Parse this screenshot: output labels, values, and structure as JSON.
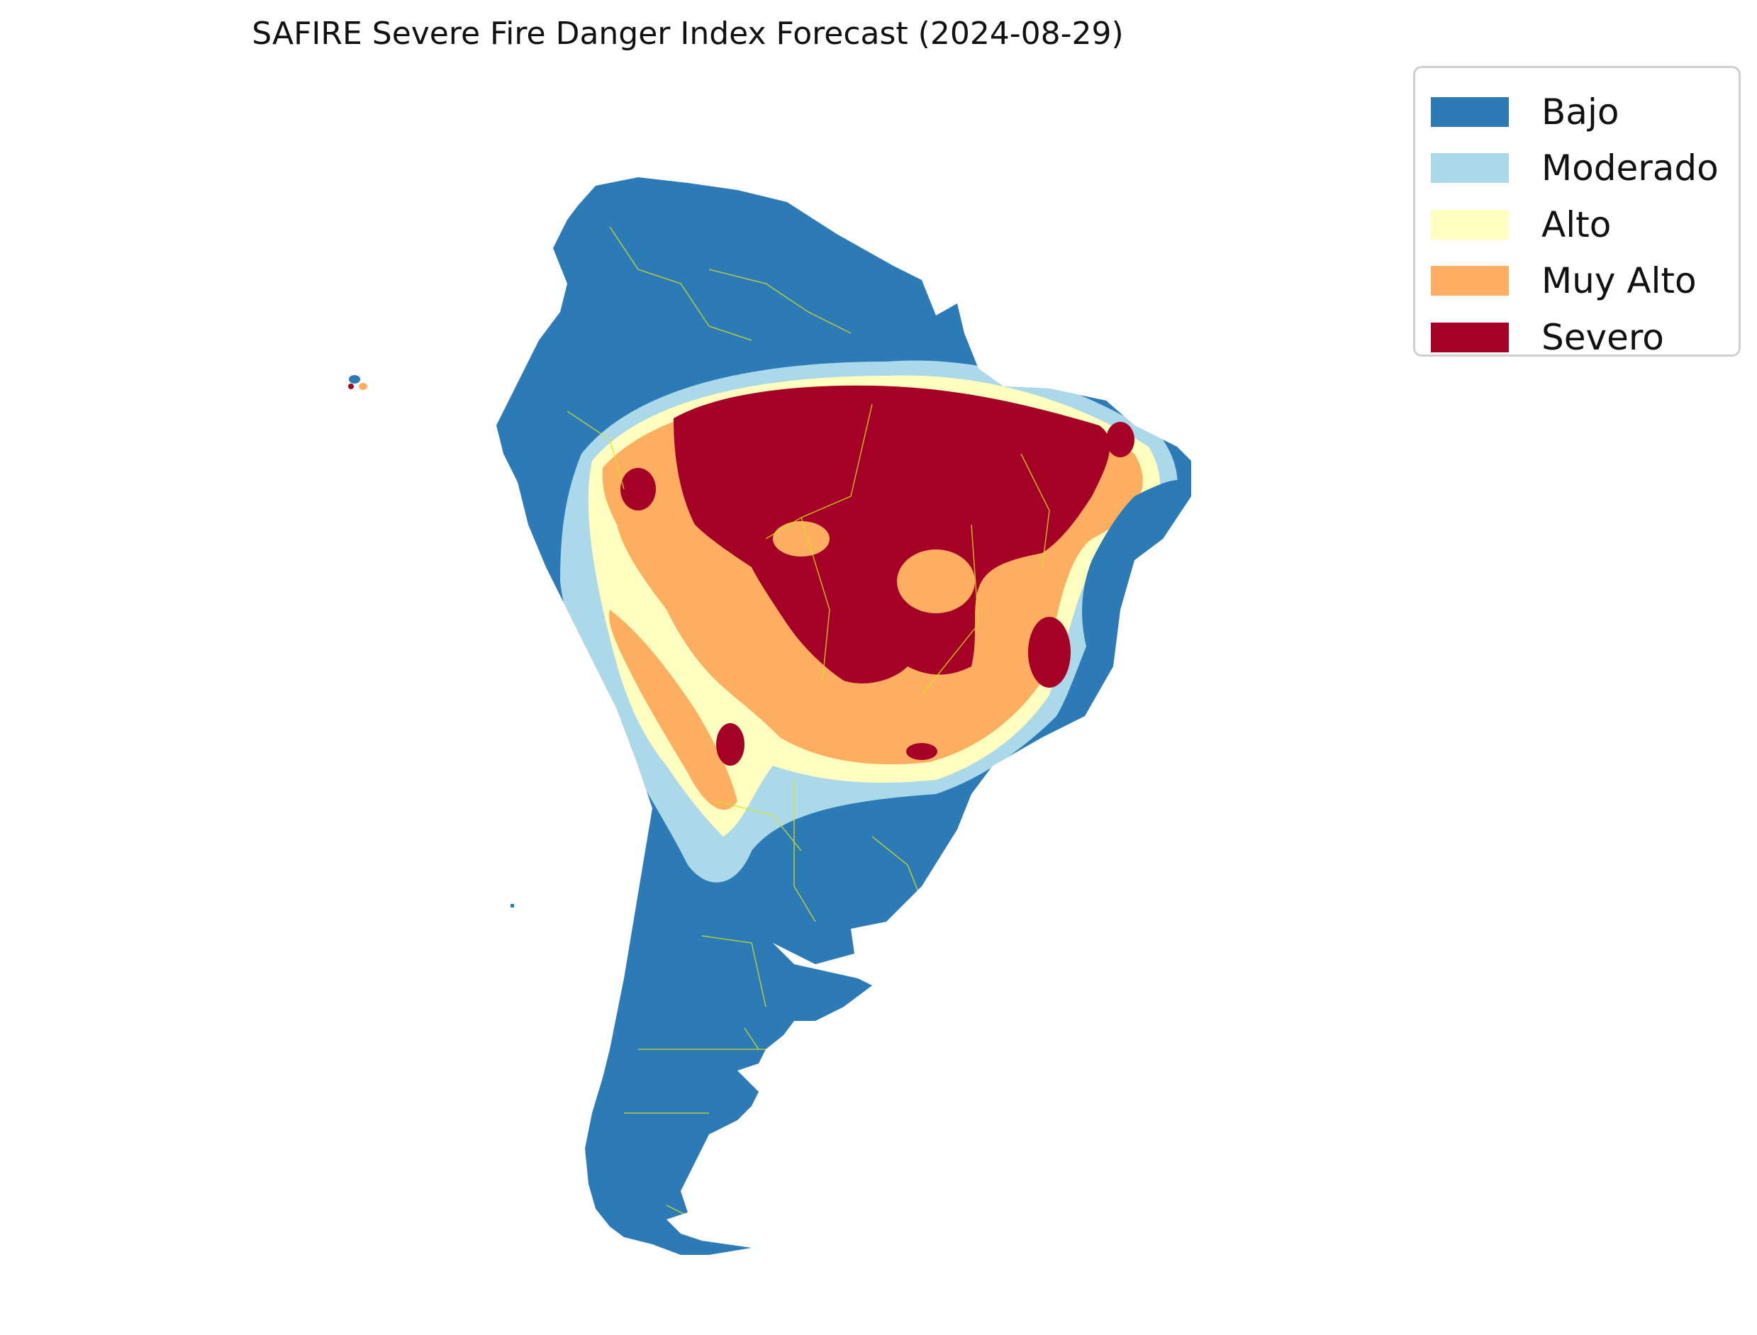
{
  "title": "SAFIRE Severe Fire Danger Index Forecast (2024-08-29)",
  "legend": {
    "placement": "top-right",
    "items": [
      {
        "label": "Bajo",
        "color": "#2c7bb6"
      },
      {
        "label": "Moderado",
        "color": "#abd9e9"
      },
      {
        "label": "Alto",
        "color": "#ffffbf"
      },
      {
        "label": "Muy Alto",
        "color": "#fdae61"
      },
      {
        "label": "Severo",
        "color": "#a50026"
      }
    ]
  },
  "colors": {
    "bajo": "#2c7bb6",
    "moderado": "#abd9e9",
    "alto": "#ffffbf",
    "muy_alto": "#fdae61",
    "severo": "#a50026",
    "boundaries": "#d4e21a",
    "background": "#ffffff"
  },
  "map": {
    "region": "South America",
    "axes_visible": false,
    "boundary_lines": "administrative boundaries drawn in yellow"
  }
}
